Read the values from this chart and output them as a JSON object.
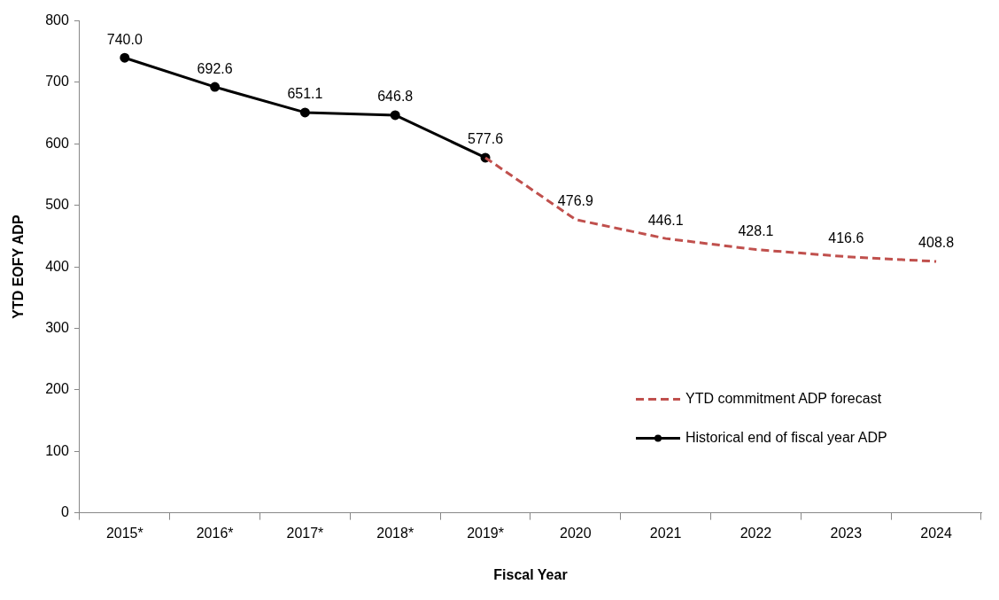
{
  "chart_data": {
    "type": "line",
    "xlabel": "Fiscal Year",
    "ylabel": "YTD EOFY ADP",
    "categories": [
      "2015*",
      "2016*",
      "2017*",
      "2018*",
      "2019*",
      "2020",
      "2021",
      "2022",
      "2023",
      "2024"
    ],
    "series": [
      {
        "name": "YTD commitment ADP forecast",
        "color": "#c0504d",
        "line_style": "dashed",
        "marker": "none",
        "values": [
          null,
          null,
          null,
          null,
          577.6,
          476.9,
          446.1,
          428.1,
          416.6,
          408.8
        ],
        "value_labels": [
          null,
          null,
          null,
          null,
          null,
          "476.9",
          "446.1",
          "428.1",
          "416.6",
          "408.8"
        ]
      },
      {
        "name": "Historical end of fiscal year ADP",
        "color": "#000000",
        "line_style": "solid",
        "marker": "circle",
        "values": [
          740.0,
          692.6,
          651.1,
          646.8,
          577.6,
          null,
          null,
          null,
          null,
          null
        ],
        "value_labels": [
          "740.0",
          "692.6",
          "651.1",
          "646.8",
          "577.6",
          null,
          null,
          null,
          null,
          null
        ]
      }
    ],
    "ylim": [
      0,
      800
    ],
    "yticks": [
      0,
      100,
      200,
      300,
      400,
      500,
      600,
      700,
      800
    ],
    "grid": false,
    "legend": "bottom right"
  }
}
